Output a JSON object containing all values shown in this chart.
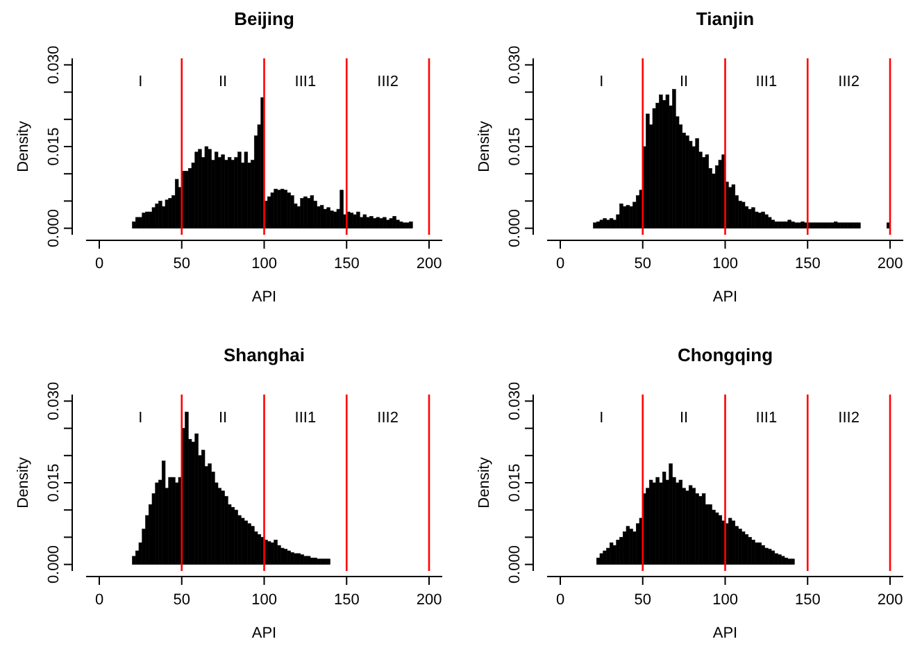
{
  "chart_data": [
    {
      "type": "histogram",
      "title": "Beijing",
      "xlabel": "API",
      "ylabel": "Density",
      "color": "#000000",
      "xlim": [
        -8,
        208
      ],
      "ylim": [
        -0.0012,
        0.0312
      ],
      "xticks": [
        0,
        50,
        100,
        150,
        200
      ],
      "yticks": [
        {
          "value": 0,
          "label": "0.000"
        },
        {
          "value": 0.005,
          "label": null
        },
        {
          "value": 0.01,
          "label": null
        },
        {
          "value": 0.015,
          "label": "0.015"
        },
        {
          "value": 0.02,
          "label": null
        },
        {
          "value": 0.025,
          "label": null
        },
        {
          "value": 0.03,
          "label": "0.030"
        }
      ],
      "bins": [
        20,
        22,
        24,
        26,
        28,
        30,
        32,
        34,
        36,
        38,
        40,
        42,
        44,
        46,
        48,
        50,
        52,
        54,
        56,
        58,
        60,
        62,
        64,
        66,
        68,
        70,
        72,
        74,
        76,
        78,
        80,
        82,
        84,
        86,
        88,
        90,
        92,
        94,
        96,
        98,
        100,
        102,
        104,
        106,
        108,
        110,
        112,
        114,
        116,
        118,
        120,
        122,
        124,
        126,
        128,
        130,
        132,
        134,
        136,
        138,
        140,
        142,
        144,
        146,
        148,
        150,
        152,
        154,
        156,
        158,
        160,
        162,
        164,
        166,
        168,
        170,
        172,
        174,
        176,
        178,
        180,
        182,
        184,
        186,
        188,
        190
      ],
      "values": [
        0.0012,
        0.002,
        0.002,
        0.0028,
        0.003,
        0.003,
        0.0038,
        0.0045,
        0.005,
        0.004,
        0.0052,
        0.0055,
        0.006,
        0.009,
        0.0075,
        0.0105,
        0.0105,
        0.011,
        0.012,
        0.014,
        0.0145,
        0.013,
        0.015,
        0.0145,
        0.0125,
        0.014,
        0.013,
        0.0135,
        0.0125,
        0.013,
        0.0125,
        0.013,
        0.014,
        0.012,
        0.014,
        0.012,
        0.0125,
        0.017,
        0.019,
        0.024,
        0.005,
        0.0058,
        0.0065,
        0.0072,
        0.007,
        0.0072,
        0.007,
        0.0065,
        0.006,
        0.0045,
        0.004,
        0.0055,
        0.0058,
        0.0055,
        0.006,
        0.005,
        0.004,
        0.0042,
        0.0035,
        0.0038,
        0.0032,
        0.003,
        0.0035,
        0.007,
        0.0025,
        0.003,
        0.0028,
        0.0025,
        0.003,
        0.002,
        0.0025,
        0.002,
        0.0022,
        0.0018,
        0.002,
        0.0018,
        0.002,
        0.0015,
        0.0018,
        0.0022,
        0.0015,
        0.0012,
        0.001,
        0.001,
        0.0012
      ],
      "ref_lines": [
        {
          "axis": "x",
          "value": 50,
          "color": "#ff0000"
        },
        {
          "axis": "x",
          "value": 100,
          "color": "#ff0000"
        },
        {
          "axis": "x",
          "value": 150,
          "color": "#ff0000"
        },
        {
          "axis": "x",
          "value": 200,
          "color": "#ff0000"
        }
      ],
      "annotations": [
        "I",
        "II",
        "III1",
        "III2"
      ]
    },
    {
      "type": "histogram",
      "title": "Tianjin",
      "xlabel": "API",
      "ylabel": "Density",
      "color": "#000000",
      "xlim": [
        -8,
        208
      ],
      "ylim": [
        -0.0012,
        0.0312
      ],
      "xticks": [
        0,
        50,
        100,
        150,
        200
      ],
      "yticks": [
        {
          "value": 0,
          "label": "0.000"
        },
        {
          "value": 0.005,
          "label": null
        },
        {
          "value": 0.01,
          "label": null
        },
        {
          "value": 0.015,
          "label": "0.015"
        },
        {
          "value": 0.02,
          "label": null
        },
        {
          "value": 0.025,
          "label": null
        },
        {
          "value": 0.03,
          "label": "0.030"
        }
      ],
      "bins": [
        20,
        22,
        24,
        26,
        28,
        30,
        32,
        34,
        36,
        38,
        40,
        42,
        44,
        46,
        48,
        50,
        52,
        54,
        56,
        58,
        60,
        62,
        64,
        66,
        68,
        70,
        72,
        74,
        76,
        78,
        80,
        82,
        84,
        86,
        88,
        90,
        92,
        94,
        96,
        98,
        100,
        102,
        104,
        106,
        108,
        110,
        112,
        114,
        116,
        118,
        120,
        122,
        124,
        126,
        128,
        130,
        132,
        134,
        136,
        138,
        140,
        142,
        144,
        146,
        148,
        150,
        152,
        154,
        156,
        158,
        160,
        162,
        164,
        166,
        168,
        170,
        172,
        174,
        176,
        178,
        180,
        182,
        184,
        186,
        188,
        190,
        192,
        194,
        196,
        198,
        200
      ],
      "values": [
        0.001,
        0.0012,
        0.0015,
        0.0018,
        0.0015,
        0.0018,
        0.0015,
        0.0025,
        0.0045,
        0.004,
        0.0042,
        0.004,
        0.0048,
        0.006,
        0.007,
        0.015,
        0.021,
        0.019,
        0.022,
        0.023,
        0.0245,
        0.0235,
        0.0245,
        0.0225,
        0.0255,
        0.0205,
        0.019,
        0.0175,
        0.017,
        0.016,
        0.015,
        0.0165,
        0.014,
        0.013,
        0.0135,
        0.011,
        0.01,
        0.0115,
        0.0125,
        0.0135,
        0.0085,
        0.0075,
        0.008,
        0.006,
        0.005,
        0.0048,
        0.004,
        0.0035,
        0.0038,
        0.003,
        0.0028,
        0.003,
        0.0025,
        0.002,
        0.0015,
        0.0012,
        0.0012,
        0.0012,
        0.0012,
        0.0015,
        0.0012,
        0.001,
        0.001,
        0.0012,
        0.001,
        0.001,
        0.001,
        0.001,
        0.001,
        0.001,
        0.001,
        0.001,
        0.001,
        0.0012,
        0.001,
        0.001,
        0.001,
        0.001,
        0.001,
        0.001,
        0.001,
        0,
        0,
        0,
        0,
        0,
        0,
        0,
        0,
        0.001
      ],
      "ref_lines": [
        {
          "axis": "x",
          "value": 50,
          "color": "#ff0000"
        },
        {
          "axis": "x",
          "value": 100,
          "color": "#ff0000"
        },
        {
          "axis": "x",
          "value": 150,
          "color": "#ff0000"
        },
        {
          "axis": "x",
          "value": 200,
          "color": "#ff0000"
        }
      ],
      "annotations": [
        "I",
        "II",
        "III1",
        "III2"
      ]
    },
    {
      "type": "histogram",
      "title": "Shanghai",
      "xlabel": "API",
      "ylabel": "Density",
      "color": "#000000",
      "xlim": [
        -8,
        208
      ],
      "ylim": [
        -0.0012,
        0.0312
      ],
      "xticks": [
        0,
        50,
        100,
        150,
        200
      ],
      "yticks": [
        {
          "value": 0,
          "label": "0.000"
        },
        {
          "value": 0.005,
          "label": null
        },
        {
          "value": 0.01,
          "label": null
        },
        {
          "value": 0.015,
          "label": "0.015"
        },
        {
          "value": 0.02,
          "label": null
        },
        {
          "value": 0.025,
          "label": null
        },
        {
          "value": 0.03,
          "label": "0.030"
        }
      ],
      "bins": [
        20,
        22,
        24,
        26,
        28,
        30,
        32,
        34,
        36,
        38,
        40,
        42,
        44,
        46,
        48,
        50,
        52,
        54,
        56,
        58,
        60,
        62,
        64,
        66,
        68,
        70,
        72,
        74,
        76,
        78,
        80,
        82,
        84,
        86,
        88,
        90,
        92,
        94,
        96,
        98,
        100,
        102,
        104,
        106,
        108,
        110,
        112,
        114,
        116,
        118,
        120,
        122,
        124,
        126,
        128,
        130,
        132,
        134,
        136,
        138,
        140
      ],
      "values": [
        0.0015,
        0.0025,
        0.004,
        0.0065,
        0.009,
        0.011,
        0.013,
        0.015,
        0.0155,
        0.019,
        0.014,
        0.016,
        0.016,
        0.015,
        0.016,
        0.025,
        0.028,
        0.023,
        0.0225,
        0.024,
        0.02,
        0.021,
        0.018,
        0.0185,
        0.017,
        0.015,
        0.014,
        0.0135,
        0.0125,
        0.011,
        0.0105,
        0.01,
        0.009,
        0.0085,
        0.008,
        0.0075,
        0.007,
        0.006,
        0.0055,
        0.005,
        0.0045,
        0.0042,
        0.004,
        0.0045,
        0.0035,
        0.003,
        0.0028,
        0.0025,
        0.0022,
        0.002,
        0.002,
        0.0018,
        0.0015,
        0.0015,
        0.0012,
        0.0012,
        0.001,
        0.001,
        0.001,
        0.001
      ],
      "ref_lines": [
        {
          "axis": "x",
          "value": 50,
          "color": "#ff0000"
        },
        {
          "axis": "x",
          "value": 100,
          "color": "#ff0000"
        },
        {
          "axis": "x",
          "value": 150,
          "color": "#ff0000"
        },
        {
          "axis": "x",
          "value": 200,
          "color": "#ff0000"
        }
      ],
      "annotations": [
        "I",
        "II",
        "III1",
        "III2"
      ]
    },
    {
      "type": "histogram",
      "title": "Chongqing",
      "xlabel": "API",
      "ylabel": "Density",
      "color": "#000000",
      "xlim": [
        -8,
        208
      ],
      "ylim": [
        -0.0012,
        0.0312
      ],
      "xticks": [
        0,
        50,
        100,
        150,
        200
      ],
      "yticks": [
        {
          "value": 0,
          "label": "0.000"
        },
        {
          "value": 0.005,
          "label": null
        },
        {
          "value": 0.01,
          "label": null
        },
        {
          "value": 0.015,
          "label": "0.015"
        },
        {
          "value": 0.02,
          "label": null
        },
        {
          "value": 0.025,
          "label": null
        },
        {
          "value": 0.03,
          "label": "0.030"
        }
      ],
      "bins": [
        22,
        24,
        26,
        28,
        30,
        32,
        34,
        36,
        38,
        40,
        42,
        44,
        46,
        48,
        50,
        52,
        54,
        56,
        58,
        60,
        62,
        64,
        66,
        68,
        70,
        72,
        74,
        76,
        78,
        80,
        82,
        84,
        86,
        88,
        90,
        92,
        94,
        96,
        98,
        100,
        102,
        104,
        106,
        108,
        110,
        112,
        114,
        116,
        118,
        120,
        122,
        124,
        126,
        128,
        130,
        132,
        134,
        136,
        138,
        140,
        142
      ],
      "values": [
        0.0012,
        0.002,
        0.0025,
        0.003,
        0.004,
        0.0035,
        0.0045,
        0.005,
        0.006,
        0.007,
        0.0065,
        0.006,
        0.0075,
        0.0085,
        0.013,
        0.014,
        0.0155,
        0.015,
        0.016,
        0.015,
        0.017,
        0.0155,
        0.0185,
        0.016,
        0.015,
        0.0155,
        0.014,
        0.0135,
        0.0145,
        0.014,
        0.013,
        0.0125,
        0.013,
        0.011,
        0.011,
        0.01,
        0.0095,
        0.009,
        0.008,
        0.0075,
        0.0085,
        0.008,
        0.007,
        0.0065,
        0.006,
        0.0055,
        0.005,
        0.0045,
        0.004,
        0.004,
        0.0035,
        0.003,
        0.0028,
        0.0025,
        0.002,
        0.0018,
        0.0015,
        0.0012,
        0.001,
        0.001
      ],
      "ref_lines": [
        {
          "axis": "x",
          "value": 50,
          "color": "#ff0000"
        },
        {
          "axis": "x",
          "value": 100,
          "color": "#ff0000"
        },
        {
          "axis": "x",
          "value": 150,
          "color": "#ff0000"
        },
        {
          "axis": "x",
          "value": 200,
          "color": "#ff0000"
        }
      ],
      "annotations": [
        "I",
        "II",
        "III1",
        "III2"
      ]
    }
  ]
}
